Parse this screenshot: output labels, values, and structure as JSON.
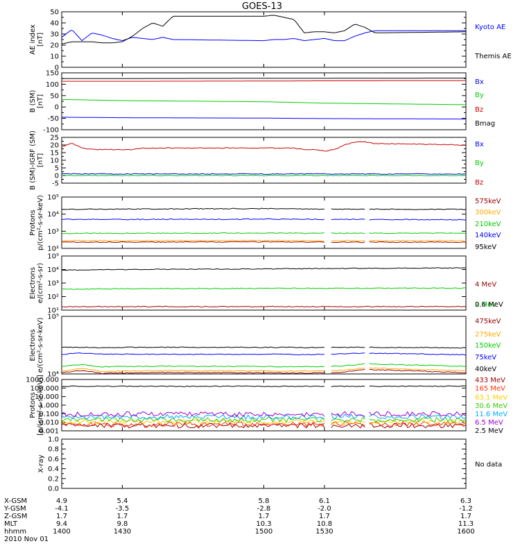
{
  "title": "GOES-13",
  "date_label": "2010 Nov 01",
  "x_axis": {
    "rows": [
      {
        "label": "X-GSM",
        "values": [
          "4.9",
          "5.4",
          "5.8",
          "6.1",
          "6.3"
        ]
      },
      {
        "label": "Y-GSM",
        "values": [
          "-4.1",
          "-3.5",
          "-2.8",
          "-2.0",
          "-1.2"
        ]
      },
      {
        "label": "Z-GSM",
        "values": [
          "1.7",
          "1.7",
          "1.7",
          "1.7",
          "1.7"
        ]
      },
      {
        "label": "MLT",
        "values": [
          "9.4",
          "9.8",
          "10.3",
          "10.8",
          "11.3"
        ]
      },
      {
        "label": "hhmm",
        "values": [
          "1400",
          "1430",
          "1500",
          "1530",
          "1600"
        ]
      }
    ]
  },
  "chart_data": [
    {
      "type": "line",
      "ylabel": "AE index [nT]",
      "ylabel_lines": [
        "AE index",
        "[nT]"
      ],
      "scale": "linear",
      "ylim": [
        0,
        50
      ],
      "yticks": [
        "0",
        "10",
        "20",
        "30",
        "40",
        "50"
      ],
      "x": [
        1400,
        1405,
        1410,
        1415,
        1420,
        1425,
        1430,
        1435,
        1440,
        1445,
        1450,
        1455,
        1500,
        1505,
        1510,
        1515,
        1520,
        1525,
        1530,
        1535,
        1540,
        1545,
        1550,
        1555,
        1600
      ],
      "series": [
        {
          "name": "Kyoto AE",
          "color": "#0000ff",
          "values": [
            27,
            34,
            24,
            31,
            29,
            26,
            24,
            27,
            26,
            25,
            27,
            25,
            24,
            25,
            25,
            26,
            24,
            25,
            26,
            24,
            24,
            28,
            31,
            33,
            33
          ]
        },
        {
          "name": "Themis AE",
          "color": "#000000",
          "values": [
            21,
            23,
            23,
            23,
            22,
            22,
            23,
            28,
            35,
            40,
            37,
            46,
            46,
            47,
            45,
            43,
            31,
            32,
            32,
            31,
            33,
            39,
            36,
            31,
            32
          ]
        }
      ]
    },
    {
      "type": "line",
      "ylabel": "B (SM) [nT]",
      "ylabel_lines": [
        "B (SM)",
        "[nT]"
      ],
      "scale": "linear",
      "ylim": [
        -100,
        150
      ],
      "yticks": [
        "-100",
        "-50",
        "0",
        "50",
        "100",
        "150"
      ],
      "x": [
        1400,
        1430,
        1500,
        1530,
        1600
      ],
      "series": [
        {
          "name": "Bx",
          "color": "#0000ff",
          "values": [
            -45,
            -47,
            -49,
            -51,
            -53
          ]
        },
        {
          "name": "By",
          "color": "#00cc00",
          "values": [
            33,
            28,
            23,
            17,
            10
          ]
        },
        {
          "name": "Bz",
          "color": "#cc0000",
          "values": [
            113,
            113,
            114,
            115,
            116
          ]
        },
        {
          "name": "Bmag",
          "color": "#000000",
          "values": [
            125,
            125,
            126,
            126,
            127
          ]
        }
      ]
    },
    {
      "type": "line",
      "ylabel": "B (SM)-IGRF (SM) [nT]",
      "ylabel_lines": [
        "B (SM)-IGRF (SM)",
        "[nT]"
      ],
      "scale": "linear",
      "ylim": [
        -5,
        25
      ],
      "yticks": [
        "-5",
        "0",
        "5",
        "10",
        "15",
        "20",
        "25"
      ],
      "x": [
        1400,
        1405,
        1410,
        1415,
        1420,
        1425,
        1430,
        1435,
        1440,
        1445,
        1450,
        1455,
        1500,
        1505,
        1510,
        1515,
        1520,
        1525,
        1530,
        1535,
        1540,
        1545,
        1550,
        1555,
        1600
      ],
      "series": [
        {
          "name": "Bx",
          "color": "#0000ff",
          "values": [
            1,
            1,
            1,
            1,
            1,
            1,
            1,
            1,
            1,
            1,
            1,
            1,
            1,
            1,
            1,
            1,
            1,
            1,
            1,
            1,
            1,
            1,
            1,
            1,
            1
          ]
        },
        {
          "name": "By",
          "color": "#00cc00",
          "values": [
            0,
            0,
            0,
            0,
            0,
            0,
            0,
            0,
            0,
            0,
            0,
            0,
            0,
            0,
            0,
            0,
            0,
            0,
            0,
            0,
            0,
            0,
            0,
            0,
            0
          ]
        },
        {
          "name": "Bz",
          "color": "#cc0000",
          "values": [
            19,
            21,
            18,
            17,
            17,
            17,
            17,
            17,
            18,
            18,
            18,
            18,
            18,
            18,
            18,
            18,
            17,
            17,
            16,
            17,
            20,
            22,
            22,
            21,
            20
          ]
        }
      ]
    },
    {
      "type": "line",
      "ylabel": "Protons p/(cm2-s-sr-keV)",
      "ylabel_lines": [
        "Protons",
        "p/(cm²-s-sr-keV)"
      ],
      "scale": "log",
      "ylim": [
        100,
        100000
      ],
      "yticks": [
        "10²",
        "10³",
        "10⁴",
        "10⁵"
      ],
      "x": [
        1400,
        1430,
        1500,
        1530,
        1600
      ],
      "series": [
        {
          "name": "575keV",
          "color": "#990000",
          "values": [
            230,
            230,
            240,
            230,
            230
          ]
        },
        {
          "name": "300keV",
          "color": "#ffaa00",
          "values": [
            290,
            280,
            290,
            280,
            280
          ]
        },
        {
          "name": "210keV",
          "color": "#00cc00",
          "values": [
            750,
            760,
            780,
            760,
            780
          ]
        },
        {
          "name": "140keV",
          "color": "#0000ff",
          "values": [
            5000,
            4900,
            5100,
            5000,
            4700
          ]
        },
        {
          "name": "95keV",
          "color": "#000000",
          "values": [
            19000,
            20000,
            21000,
            20000,
            19000
          ]
        }
      ]
    },
    {
      "type": "line",
      "ylabel": "Electrons e/(cm2-s-sr)",
      "ylabel_lines": [
        "Electrons",
        "e/(cm²-s-sr)"
      ],
      "scale": "log",
      "ylim": [
        10,
        100000
      ],
      "yticks": [
        "10¹",
        "10²",
        "10³",
        "10⁴",
        "10⁵"
      ],
      "x": [
        1400,
        1430,
        1500,
        1530,
        1600
      ],
      "series": [
        {
          "name": "4 MeV",
          "color": "#990000",
          "values": [
            18,
            18,
            18,
            18,
            18
          ]
        },
        {
          "name": "2 MeV",
          "color": "#00cc00",
          "values": [
            350,
            380,
            400,
            410,
            420
          ]
        },
        {
          "name": "0.6 MeV",
          "color": "#000000",
          "values": [
            9000,
            10000,
            11000,
            12000,
            13000
          ]
        }
      ]
    },
    {
      "type": "line",
      "ylabel": "Electrons e/(cm2-s-sr-keV)",
      "ylabel_lines": [
        "Electrons",
        "e/(cm²-s-sr-keV)"
      ],
      "scale": "log",
      "ylim": [
        10000,
        100000
      ],
      "yticks": [
        "10⁴",
        "10⁵"
      ],
      "x": [
        1400,
        1410,
        1420,
        1430,
        1440,
        1450,
        1500,
        1510,
        1520,
        1530,
        1540,
        1550,
        1600
      ],
      "series": [
        {
          "name": "475keV",
          "color": "#990000",
          "values": [
            10500,
            11500,
            10200,
            10400,
            10500,
            10600,
            10500,
            10400,
            10400,
            10500,
            10800,
            12000,
            10500
          ]
        },
        {
          "name": "275keV",
          "color": "#ffaa00",
          "values": [
            11200,
            12500,
            11000,
            11300,
            11300,
            11400,
            11300,
            11200,
            11200,
            11300,
            11700,
            12800,
            11300
          ]
        },
        {
          "name": "150keV",
          "color": "#00cc00",
          "values": [
            13500,
            14500,
            13300,
            13500,
            13500,
            13600,
            13500,
            13400,
            13400,
            13500,
            13800,
            15000,
            13500
          ]
        },
        {
          "name": "75keV",
          "color": "#0000ff",
          "values": [
            22000,
            23000,
            22000,
            22000,
            22000,
            22000,
            22000,
            22000,
            21500,
            22000,
            22500,
            23000,
            21500
          ]
        },
        {
          "name": "40keV",
          "color": "#000000",
          "values": [
            29000,
            29000,
            28500,
            29000,
            29000,
            29000,
            29000,
            29000,
            28500,
            29000,
            29000,
            29000,
            28500
          ]
        }
      ]
    },
    {
      "type": "line",
      "ylabel": "Protons p/(cm2-s-sr-keV)",
      "ylabel_lines": [
        "Protons",
        "[p/(cm²-s-sr-keV)]"
      ],
      "scale": "log",
      "ylim": [
        0.001,
        1000
      ],
      "yticks": [
        "0.001",
        "0.010",
        "0.100",
        "1.000",
        "10.000",
        "100.000",
        "1000.000"
      ],
      "x": [
        1400,
        1430,
        1500,
        1530,
        1600
      ],
      "series": [
        {
          "name": "433 MeV",
          "color": "#990000",
          "values": [
            0.004,
            0.004,
            0.004,
            0.004,
            0.004
          ]
        },
        {
          "name": "165 MeV",
          "color": "#ff3300",
          "values": [
            0.006,
            0.006,
            0.006,
            0.006,
            0.006
          ]
        },
        {
          "name": "63.1 MeV",
          "color": "#ffcc00",
          "values": [
            0.012,
            0.011,
            0.012,
            0.011,
            0.012
          ]
        },
        {
          "name": "30.6 MeV",
          "color": "#33cc00",
          "values": [
            0.02,
            0.02,
            0.02,
            0.02,
            0.02
          ]
        },
        {
          "name": "11.6 MeV",
          "color": "#00aaff",
          "values": [
            0.04,
            0.045,
            0.04,
            0.045,
            0.04
          ]
        },
        {
          "name": "6.5 MeV",
          "color": "#9900cc",
          "values": [
            0.08,
            0.09,
            0.08,
            0.09,
            0.1
          ]
        },
        {
          "name": "2.5 MeV",
          "color": "#000000",
          "values": [
            160,
            160,
            160,
            160,
            165
          ]
        }
      ]
    },
    {
      "type": "line",
      "ylabel": "X-ray",
      "ylabel_lines": [
        "X-ray"
      ],
      "scale": "linear",
      "ylim": [
        0,
        1
      ],
      "yticks": [
        "0.0",
        "0.2",
        "0.4",
        "0.6",
        "0.8",
        "1.0"
      ],
      "x": [],
      "series": [],
      "annotation": "No data"
    }
  ]
}
